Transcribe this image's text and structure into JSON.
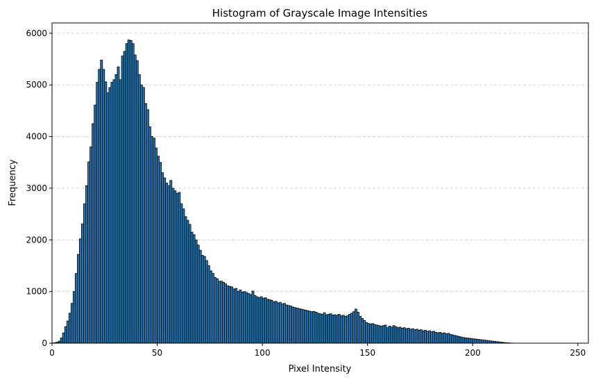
{
  "chart_data": {
    "type": "bar",
    "title": "Histogram of Grayscale Image Intensities",
    "xlabel": "Pixel Intensity",
    "ylabel": "Frequency",
    "xlim": [
      0,
      255
    ],
    "ylim": [
      0,
      6200
    ],
    "xticks": [
      0,
      50,
      100,
      150,
      200,
      250
    ],
    "yticks": [
      0,
      1000,
      2000,
      3000,
      4000,
      5000,
      6000
    ],
    "grid": "y-dashed",
    "bar_color": "#1f77b4",
    "edge_color": "#000000",
    "bin_start": 0,
    "bin_width": 1,
    "values": [
      5,
      10,
      20,
      40,
      100,
      200,
      320,
      430,
      580,
      770,
      1000,
      1350,
      1720,
      2020,
      2310,
      2700,
      3050,
      3510,
      3800,
      4250,
      4610,
      5050,
      5300,
      5480,
      5300,
      5060,
      4850,
      4950,
      5050,
      5100,
      5200,
      5350,
      5100,
      5560,
      5650,
      5800,
      5870,
      5860,
      5800,
      5580,
      5470,
      5200,
      5000,
      4950,
      4640,
      4520,
      4190,
      4000,
      3970,
      3780,
      3620,
      3500,
      3300,
      3200,
      3100,
      3050,
      3150,
      3000,
      2950,
      2900,
      2920,
      2700,
      2600,
      2450,
      2380,
      2300,
      2150,
      2100,
      2000,
      1900,
      1800,
      1700,
      1680,
      1600,
      1500,
      1400,
      1350,
      1270,
      1250,
      1200,
      1200,
      1180,
      1150,
      1110,
      1100,
      1090,
      1050,
      1060,
      1000,
      1030,
      990,
      1000,
      980,
      960,
      940,
      1010,
      920,
      900,
      880,
      900,
      870,
      880,
      850,
      840,
      830,
      800,
      810,
      780,
      790,
      760,
      770,
      740,
      730,
      720,
      700,
      690,
      680,
      670,
      660,
      650,
      640,
      630,
      620,
      610,
      615,
      600,
      580,
      570,
      560,
      590,
      550,
      560,
      570,
      545,
      550,
      540,
      560,
      530,
      540,
      520,
      530,
      560,
      580,
      610,
      660,
      600,
      520,
      480,
      440,
      400,
      380,
      370,
      380,
      360,
      350,
      340,
      330,
      340,
      350,
      300,
      330,
      310,
      340,
      320,
      300,
      310,
      290,
      300,
      280,
      290,
      270,
      280,
      260,
      270,
      250,
      260,
      240,
      250,
      230,
      240,
      220,
      230,
      210,
      200,
      210,
      190,
      200,
      180,
      190,
      170,
      160,
      150,
      140,
      130,
      120,
      110,
      105,
      100,
      95,
      90,
      85,
      80,
      75,
      70,
      65,
      60,
      55,
      50,
      45,
      40,
      35,
      30,
      25,
      20,
      15,
      10,
      8,
      5,
      3,
      2
    ]
  }
}
